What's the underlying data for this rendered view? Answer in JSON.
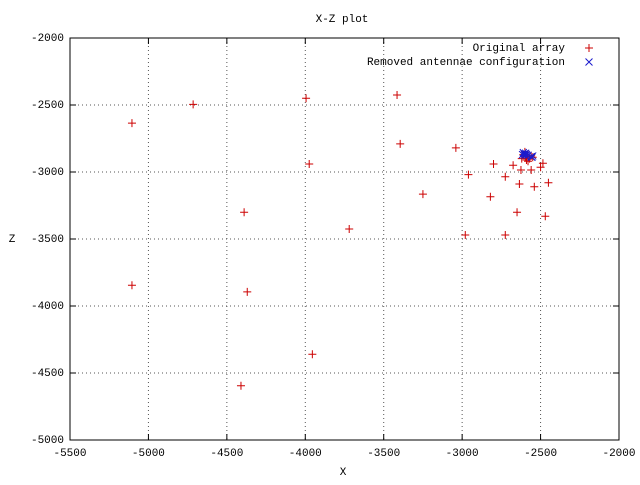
{
  "chart_data": {
    "type": "scatter",
    "title": "X-Z plot",
    "x_label": "X",
    "y_label": "Z",
    "xlim": [
      -5500,
      -2000
    ],
    "ylim": [
      -5000,
      -2000
    ],
    "xticks": [
      -5500,
      -5000,
      -4500,
      -4000,
      -3500,
      -3000,
      -2500,
      -2000
    ],
    "yticks": [
      -5000,
      -4500,
      -4000,
      -3500,
      -3000,
      -2500,
      -2000
    ],
    "grid": true,
    "legend": "top-right",
    "series": [
      {
        "name": "Original array",
        "color": "#cc0000",
        "marker": "plus",
        "x": [
          -5105,
          -4715,
          -3995,
          -3415,
          -5105,
          -4390,
          -4370,
          -4410,
          -3955,
          -3975,
          -3720,
          -3395,
          -3250,
          -3040,
          -2960,
          -2980,
          -2820,
          -2800,
          -2725,
          -2725,
          -2675,
          -2650,
          -2635,
          -2625,
          -2560,
          -2540,
          -2500,
          -2450,
          -2470,
          -2485,
          -2610,
          -2595,
          -2580,
          -2570,
          -2560,
          -2550,
          -2590,
          -2620,
          -2600,
          -2580
        ],
        "values": [
          -2635,
          -2495,
          -2450,
          -2425,
          -3845,
          -3300,
          -3895,
          -4595,
          -4360,
          -2940,
          -3425,
          -2790,
          -3165,
          -2820,
          -3020,
          -3470,
          -3185,
          -2940,
          -3470,
          -3035,
          -2950,
          -3300,
          -3090,
          -2985,
          -2985,
          -3110,
          -2965,
          -3080,
          -3330,
          -2935,
          -2870,
          -2890,
          -2880,
          -2900,
          -2880,
          -2890,
          -2910,
          -2900,
          -2850,
          -2920
        ]
      },
      {
        "name": "Removed antennae configuration",
        "color": "#1a1acc",
        "marker": "cross",
        "x": [
          -2610,
          -2605,
          -2595,
          -2600,
          -2590,
          -2615,
          -2560,
          -2550,
          -2555,
          -2580
        ],
        "values": [
          -2855,
          -2865,
          -2860,
          -2875,
          -2870,
          -2870,
          -2885,
          -2880,
          -2890,
          -2875
        ]
      }
    ]
  }
}
